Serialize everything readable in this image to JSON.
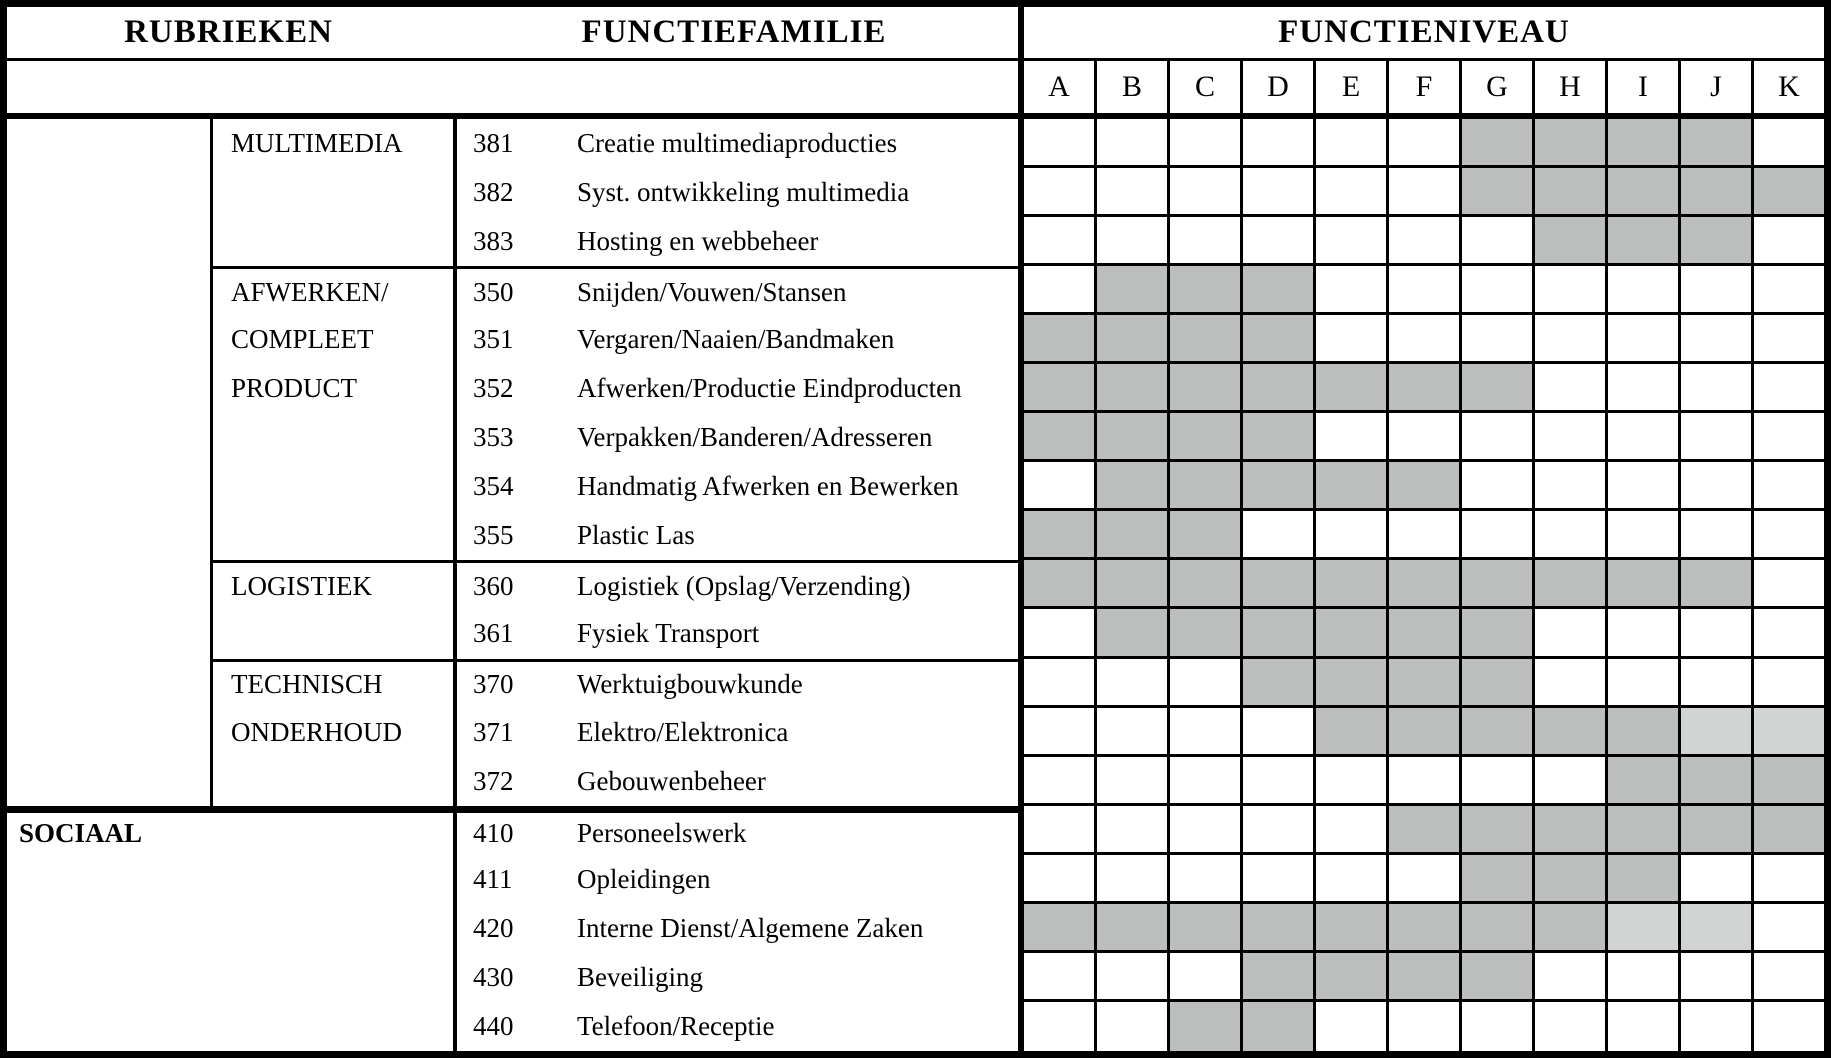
{
  "header": {
    "rubrieken": "RUBRIEKEN",
    "functiefamilie": "FUNCTIEFAMILIE",
    "functieniveau": "FUNCTIENIVEAU"
  },
  "levels": [
    "A",
    "B",
    "C",
    "D",
    "E",
    "F",
    "G",
    "H",
    "I",
    "J",
    "K"
  ],
  "colors": {
    "shaded": "#bcbebd",
    "light": "#d2d4d3",
    "line": "#000000",
    "background": "#ffffff"
  },
  "rows": [
    {
      "rubriek": "",
      "family_line": "MULTIMEDIA",
      "code": "381",
      "label": "Creatie multimediaproducties",
      "shaded": [
        "G",
        "H",
        "I",
        "J"
      ],
      "light": [],
      "group_start": false,
      "section_start": false,
      "merged": false
    },
    {
      "rubriek": "",
      "family_line": "",
      "code": "382",
      "label": "Syst. ontwikkeling multimedia",
      "shaded": [
        "G",
        "H",
        "I",
        "J",
        "K"
      ],
      "light": [],
      "group_start": false,
      "section_start": false,
      "merged": false
    },
    {
      "rubriek": "",
      "family_line": "",
      "code": "383",
      "label": "Hosting en webbeheer",
      "shaded": [
        "H",
        "I",
        "J"
      ],
      "light": [],
      "group_start": false,
      "section_start": false,
      "merged": false
    },
    {
      "rubriek": "",
      "family_line": "AFWERKEN/",
      "code": "350",
      "label": "Snijden/Vouwen/Stansen",
      "shaded": [
        "B",
        "C",
        "D"
      ],
      "light": [],
      "group_start": true,
      "section_start": false,
      "merged": false
    },
    {
      "rubriek": "",
      "family_line": "COMPLEET",
      "code": "351",
      "label": "Vergaren/Naaien/Bandmaken",
      "shaded": [
        "A",
        "B",
        "C",
        "D"
      ],
      "light": [],
      "group_start": false,
      "section_start": false,
      "merged": false
    },
    {
      "rubriek": "",
      "family_line": "PRODUCT",
      "code": "352",
      "label": "Afwerken/Productie Eindproducten",
      "shaded": [
        "A",
        "B",
        "C",
        "D",
        "E",
        "F",
        "G"
      ],
      "light": [],
      "group_start": false,
      "section_start": false,
      "merged": false
    },
    {
      "rubriek": "",
      "family_line": "",
      "code": "353",
      "label": "Verpakken/Banderen/Adresseren",
      "shaded": [
        "A",
        "B",
        "C",
        "D"
      ],
      "light": [],
      "group_start": false,
      "section_start": false,
      "merged": false
    },
    {
      "rubriek": "",
      "family_line": "",
      "code": "354",
      "label": "Handmatig Afwerken en Bewerken",
      "shaded": [
        "B",
        "C",
        "D",
        "E",
        "F"
      ],
      "light": [],
      "group_start": false,
      "section_start": false,
      "merged": false
    },
    {
      "rubriek": "",
      "family_line": "",
      "code": "355",
      "label": "Plastic Las",
      "shaded": [
        "A",
        "B",
        "C"
      ],
      "light": [],
      "group_start": false,
      "section_start": false,
      "merged": false
    },
    {
      "rubriek": "",
      "family_line": "LOGISTIEK",
      "code": "360",
      "label": "Logistiek (Opslag/Verzending)",
      "shaded": [
        "A",
        "B",
        "C",
        "D",
        "E",
        "F",
        "G",
        "H",
        "I",
        "J"
      ],
      "light": [],
      "group_start": true,
      "section_start": false,
      "merged": false
    },
    {
      "rubriek": "",
      "family_line": "",
      "code": "361",
      "label": "Fysiek Transport",
      "shaded": [
        "B",
        "C",
        "D",
        "E",
        "F",
        "G"
      ],
      "light": [],
      "group_start": false,
      "section_start": false,
      "merged": false
    },
    {
      "rubriek": "",
      "family_line": "TECHNISCH",
      "code": "370",
      "label": "Werktuigbouwkunde",
      "shaded": [
        "D",
        "E",
        "F",
        "G"
      ],
      "light": [],
      "group_start": true,
      "section_start": false,
      "merged": false
    },
    {
      "rubriek": "",
      "family_line": "ONDERHOUD",
      "code": "371",
      "label": "Elektro/Elektronica",
      "shaded": [
        "E",
        "F",
        "G",
        "H",
        "I"
      ],
      "light": [
        "J",
        "K"
      ],
      "group_start": false,
      "section_start": false,
      "merged": false
    },
    {
      "rubriek": "",
      "family_line": "",
      "code": "372",
      "label": "Gebouwenbeheer",
      "shaded": [
        "I",
        "J",
        "K"
      ],
      "light": [],
      "group_start": false,
      "section_start": false,
      "merged": false
    },
    {
      "rubriek": "SOCIAAL",
      "family_line": "",
      "code": "410",
      "label": "Personeelswerk",
      "shaded": [
        "F",
        "G",
        "H",
        "I",
        "J",
        "K"
      ],
      "light": [],
      "group_start": false,
      "section_start": true,
      "merged": true
    },
    {
      "rubriek": "",
      "family_line": "",
      "code": "411",
      "label": "Opleidingen",
      "shaded": [
        "G",
        "H",
        "I"
      ],
      "light": [],
      "group_start": false,
      "section_start": false,
      "merged": true
    },
    {
      "rubriek": "",
      "family_line": "",
      "code": "420",
      "label": "Interne Dienst/Algemene Zaken",
      "shaded": [
        "A",
        "B",
        "C",
        "D",
        "E",
        "F",
        "G",
        "H"
      ],
      "light": [
        "I",
        "J"
      ],
      "group_start": false,
      "section_start": false,
      "merged": true
    },
    {
      "rubriek": "",
      "family_line": "",
      "code": "430",
      "label": "Beveiliging",
      "shaded": [
        "D",
        "E",
        "F",
        "G"
      ],
      "light": [],
      "group_start": false,
      "section_start": false,
      "merged": true
    },
    {
      "rubriek": "",
      "family_line": "",
      "code": "440",
      "label": "Telefoon/Receptie",
      "shaded": [
        "C",
        "D"
      ],
      "light": [],
      "group_start": false,
      "section_start": false,
      "merged": true
    }
  ]
}
